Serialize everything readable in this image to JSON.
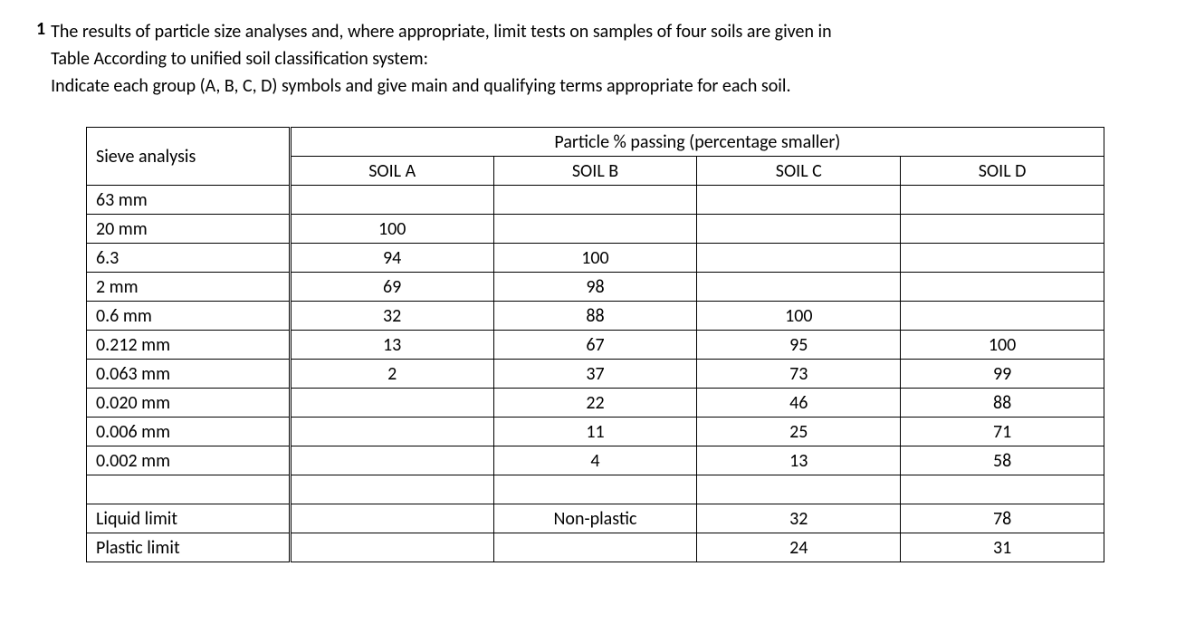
{
  "question": {
    "number": "1",
    "line1": "The results of particle size analyses and, where appropriate, limit tests on samples of four soils are given in",
    "line2": "Table According to unified soil classification system:",
    "line3": "Indicate each group (A, B, C, D) symbols and give main and qualifying terms appropriate for each soil."
  },
  "table": {
    "sieve_header": "Sieve analysis",
    "particle_header": "Particle % passing (percentage smaller)",
    "soil_headers": [
      "SOIL A",
      "SOIL B",
      "SOIL C",
      "SOIL D"
    ],
    "rows": [
      {
        "label": "63 mm",
        "values": [
          "",
          "",
          "",
          ""
        ]
      },
      {
        "label": "20 mm",
        "values": [
          "100",
          "",
          "",
          ""
        ]
      },
      {
        "label": "6.3",
        "values": [
          "94",
          "100",
          "",
          ""
        ]
      },
      {
        "label": "2 mm",
        "values": [
          "69",
          "98",
          "",
          ""
        ]
      },
      {
        "label": "0.6 mm",
        "values": [
          "32",
          "88",
          "100",
          ""
        ]
      },
      {
        "label": "0.212 mm",
        "values": [
          "13",
          "67",
          "95",
          "100"
        ]
      },
      {
        "label": "0.063 mm",
        "values": [
          "2",
          "37",
          "73",
          "99"
        ]
      },
      {
        "label": "0.020 mm",
        "values": [
          "",
          "22",
          "46",
          "88"
        ]
      },
      {
        "label": "0.006 mm",
        "values": [
          "",
          "11",
          "25",
          "71"
        ]
      },
      {
        "label": "0.002 mm",
        "values": [
          "",
          "4",
          "13",
          "58"
        ]
      },
      {
        "label": "",
        "values": [
          "",
          "",
          "",
          ""
        ]
      },
      {
        "label": "Liquid limit",
        "values": [
          "",
          "Non-plastic",
          "32",
          "78"
        ]
      },
      {
        "label": "Plastic limit",
        "values": [
          "",
          "",
          "24",
          "31"
        ]
      }
    ]
  },
  "style": {
    "font_family": "Calibri",
    "font_size_pt": 15,
    "text_color": "#000000",
    "background_color": "#ffffff",
    "border_color": "#000000"
  }
}
